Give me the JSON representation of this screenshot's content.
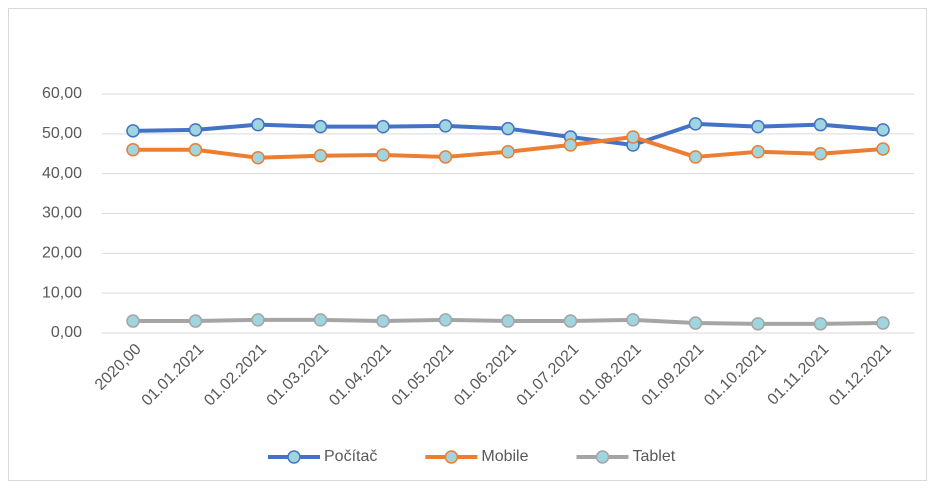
{
  "chart_data": {
    "type": "line",
    "categories": [
      "2020,00",
      "01.01.2021",
      "01.02.2021",
      "01.03.2021",
      "01.04.2021",
      "01.05.2021",
      "01.06.2021",
      "01.07.2021",
      "01.08.2021",
      "01.09.2021",
      "01.10.2021",
      "01.11.2021",
      "01.12.2021"
    ],
    "series": [
      {
        "name": "Počítač",
        "color": "#4472c4",
        "marker_color": "#9fd5de",
        "values": [
          50.75,
          51.0,
          52.3,
          51.8,
          51.8,
          52.0,
          51.3,
          49.2,
          47.2,
          52.5,
          51.8,
          52.3,
          51.0
        ]
      },
      {
        "name": "Mobile",
        "color": "#ed7d31",
        "marker_color": "#9fd5de",
        "values": [
          46.0,
          46.0,
          44.0,
          44.5,
          44.7,
          44.2,
          45.5,
          47.2,
          49.2,
          44.2,
          45.5,
          45.0,
          46.2
        ]
      },
      {
        "name": "Tablet",
        "color": "#a5a5a5",
        "marker_color": "#9fd5de",
        "values": [
          3.0,
          3.0,
          3.3,
          3.3,
          3.0,
          3.3,
          3.0,
          3.0,
          3.3,
          2.5,
          2.3,
          2.3,
          2.5
        ]
      }
    ],
    "ylim": [
      0,
      60
    ],
    "yticks": [
      {
        "value": 0,
        "label": "0,00"
      },
      {
        "value": 10,
        "label": "10,00"
      },
      {
        "value": 20,
        "label": "20,00"
      },
      {
        "value": 30,
        "label": "30,00"
      },
      {
        "value": 40,
        "label": "40,00"
      },
      {
        "value": 50,
        "label": "50,00"
      },
      {
        "value": 60,
        "label": "60,00"
      }
    ],
    "grid": true,
    "legend": "bottom"
  }
}
